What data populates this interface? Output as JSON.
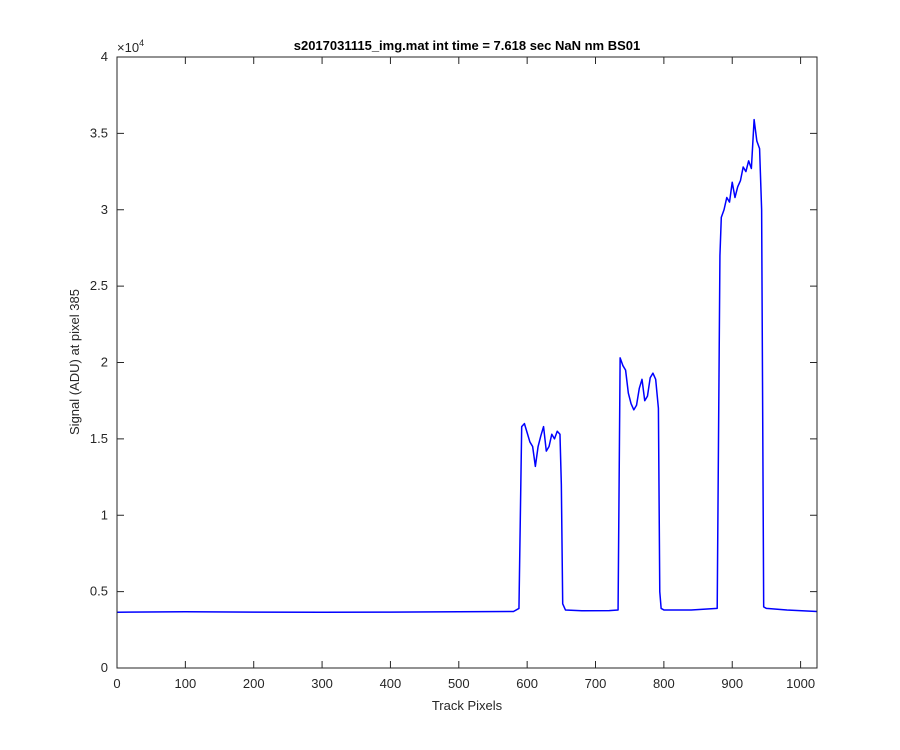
{
  "chart_data": {
    "type": "line",
    "title": "s2017031115_img.mat int time = 7.618 sec  NaN nm BS01",
    "xlabel": "Track Pixels",
    "ylabel": "Signal (ADU) at pixel 385",
    "xlim": [
      0,
      1024
    ],
    "ylim": [
      0,
      40000
    ],
    "xticks": [
      0,
      100,
      200,
      300,
      400,
      500,
      600,
      700,
      800,
      900,
      1000
    ],
    "yticks": [
      0,
      0.5,
      1,
      1.5,
      2,
      2.5,
      3,
      3.5,
      4
    ],
    "y_exponent_label": "×10",
    "y_exponent_power": "4",
    "grid": false,
    "line_color": "#0000ff",
    "series": [
      {
        "x": [
          0,
          100,
          200,
          300,
          400,
          500,
          580,
          588,
          592,
          596,
          600,
          604,
          608,
          612,
          616,
          620,
          624,
          628,
          632,
          636,
          640,
          644,
          648,
          650,
          652,
          656,
          680,
          720,
          733,
          736,
          740,
          744,
          748,
          752,
          756,
          760,
          764,
          768,
          772,
          776,
          780,
          784,
          788,
          792,
          794,
          796,
          800,
          840,
          878,
          882,
          884,
          888,
          892,
          896,
          900,
          904,
          908,
          912,
          916,
          920,
          924,
          928,
          932,
          936,
          940,
          943,
          946,
          950,
          980,
          1024
        ],
        "y": [
          3650,
          3680,
          3660,
          3650,
          3660,
          3680,
          3700,
          3900,
          15800,
          16000,
          15400,
          14800,
          14500,
          13200,
          14500,
          15200,
          15800,
          14200,
          14500,
          15300,
          15000,
          15500,
          15300,
          12000,
          4200,
          3800,
          3750,
          3760,
          3800,
          20300,
          19800,
          19500,
          18000,
          17300,
          16900,
          17200,
          18300,
          18900,
          17500,
          17800,
          19000,
          19300,
          18900,
          17000,
          5000,
          3900,
          3800,
          3800,
          3900,
          27000,
          29500,
          30000,
          30800,
          30500,
          31800,
          30800,
          31500,
          31900,
          32800,
          32500,
          33200,
          32700,
          35900,
          34500,
          34000,
          30000,
          4000,
          3900,
          3800,
          3700
        ]
      }
    ]
  }
}
